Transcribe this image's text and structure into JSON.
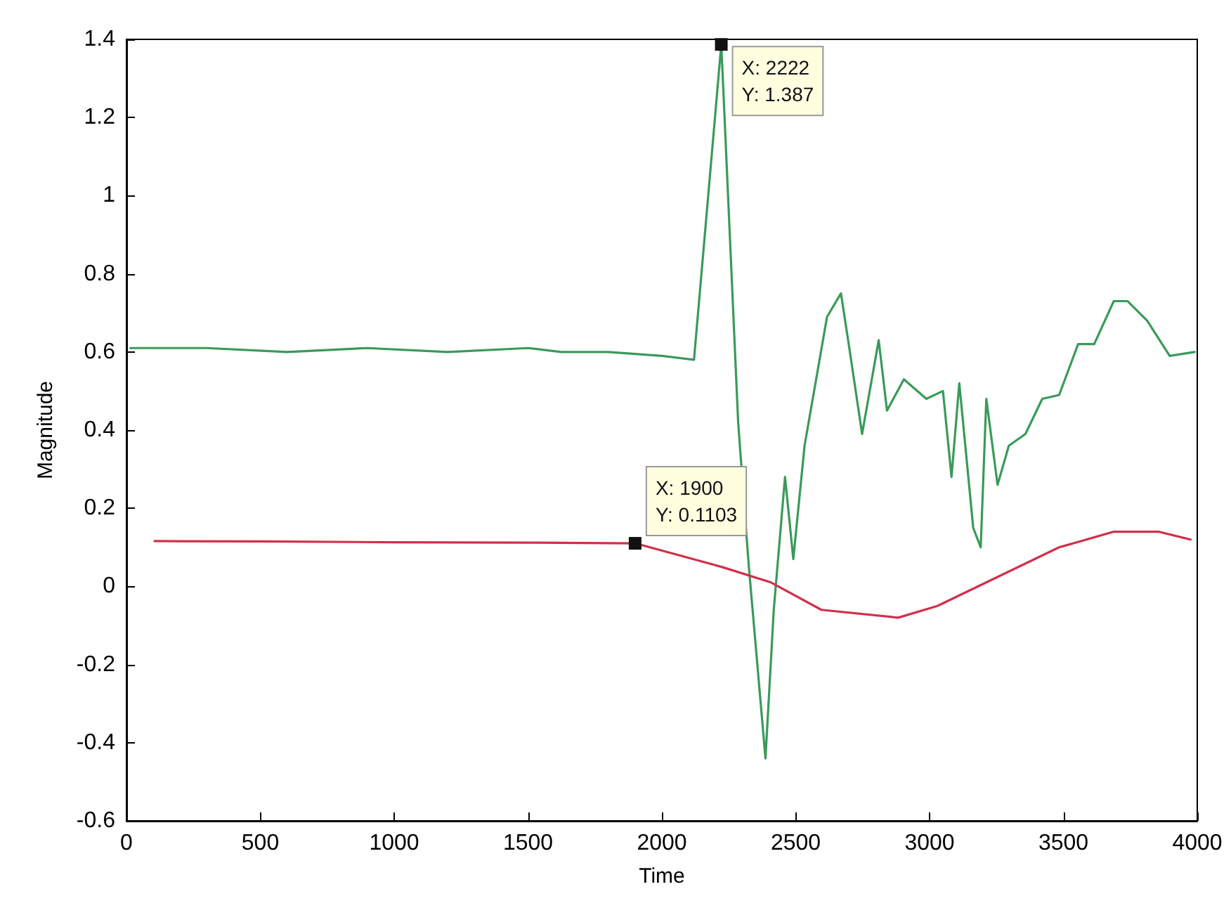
{
  "chart_data": {
    "type": "line",
    "xlabel": "Time",
    "ylabel": "Magnitude",
    "xlim": [
      0,
      4000
    ],
    "ylim": [
      -0.6,
      1.4
    ],
    "xticks": [
      0,
      500,
      1000,
      1500,
      2000,
      2500,
      3000,
      3500,
      4000
    ],
    "yticks": [
      -0.6,
      -0.4,
      -0.2,
      0,
      0.2,
      0.4,
      0.6,
      0.8,
      1,
      1.2,
      1.4
    ],
    "grid": false,
    "marker": "none",
    "line_style": "solid",
    "series": [
      {
        "color": "#3a9a5a",
        "x": [
          15,
          300,
          600,
          900,
          1200,
          1500,
          1624,
          1800,
          2000,
          2120,
          2222,
          2285,
          2315,
          2325,
          2387,
          2418,
          2460,
          2491,
          2533,
          2617,
          2669,
          2698,
          2748,
          2810,
          2841,
          2904,
          2988,
          3050,
          3082,
          3111,
          3163,
          3191,
          3212,
          3254,
          3296,
          3358,
          3421,
          3484,
          3555,
          3615,
          3688,
          3740,
          3813,
          3897,
          3990
        ],
        "values": [
          0.61,
          0.61,
          0.6,
          0.61,
          0.6,
          0.61,
          0.6,
          0.6,
          0.59,
          0.58,
          1.387,
          0.42,
          0.14,
          0.05,
          -0.44,
          -0.06,
          0.28,
          0.07,
          0.36,
          0.69,
          0.75,
          0.62,
          0.39,
          0.63,
          0.45,
          0.53,
          0.48,
          0.5,
          0.28,
          0.52,
          0.15,
          0.1,
          0.48,
          0.26,
          0.36,
          0.39,
          0.48,
          0.49,
          0.62,
          0.62,
          0.73,
          0.73,
          0.68,
          0.59,
          0.6
        ]
      },
      {
        "color": "#d0304a",
        "x": [
          105,
          500,
          1000,
          1500,
          1900,
          2223,
          2408,
          2596,
          2883,
          3029,
          3484,
          3688,
          3855,
          3975
        ],
        "values": [
          0.116,
          0.115,
          0.113,
          0.112,
          0.1103,
          0.05,
          0.01,
          -0.06,
          -0.08,
          -0.05,
          0.1,
          0.14,
          0.14,
          0.12
        ]
      }
    ],
    "annotations": [
      {
        "text": "X: 2222\nY: 1.387",
        "x": 2222,
        "y": 1.387
      },
      {
        "text": "X: 1900\nY: 0.1103",
        "x": 1900,
        "y": 0.1103
      }
    ]
  }
}
